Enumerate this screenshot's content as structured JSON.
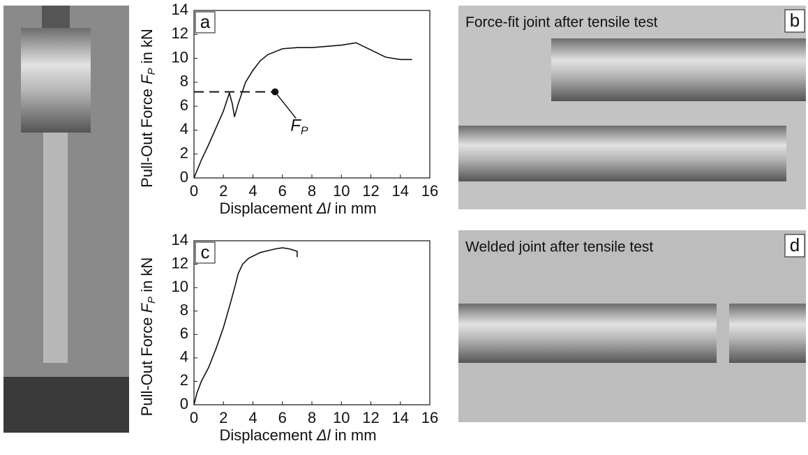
{
  "chart_data": [
    {
      "type": "line",
      "panel": "a",
      "x_label": {
        "text": "Displacement ",
        "symbol": "Δl",
        "unit": " in mm"
      },
      "y_label": {
        "text": "Pull-Out Force ",
        "symbol": "F",
        "subscript": "P",
        "unit": " in kN"
      },
      "x": [
        0,
        0.5,
        1,
        1.5,
        2,
        2.4,
        2.6,
        2.75,
        3,
        3.5,
        4,
        4.5,
        5,
        6,
        7,
        8,
        9,
        10,
        11,
        11.5,
        12,
        13,
        14,
        14.8
      ],
      "series": [
        {
          "color": "#111111",
          "values": [
            0,
            1.5,
            2.8,
            4.2,
            5.6,
            7.1,
            6.2,
            5.1,
            6.2,
            8.0,
            9.0,
            9.8,
            10.3,
            10.8,
            10.9,
            10.9,
            11.0,
            11.1,
            11.3,
            11.0,
            10.7,
            10.1,
            9.9,
            9.9
          ]
        }
      ],
      "marker": {
        "x": 5.5,
        "y": 7.2,
        "symbol": "F",
        "subscript": "P"
      },
      "xlim": [
        0,
        16
      ],
      "xticks": [
        0,
        2,
        4,
        6,
        8,
        10,
        12,
        14,
        16
      ],
      "ylim": [
        0,
        14
      ],
      "yticks": [
        0,
        2,
        4,
        6,
        8,
        10,
        12,
        14
      ]
    },
    {
      "type": "line",
      "panel": "c",
      "x_label": {
        "text": "Displacement ",
        "symbol": "Δl",
        "unit": " in mm"
      },
      "y_label": {
        "text": "Pull-Out Force ",
        "symbol": "F",
        "subscript": "P",
        "unit": " in kN"
      },
      "x": [
        0,
        0.2,
        0.5,
        1,
        1.5,
        2,
        2.5,
        2.8,
        3,
        3.3,
        3.7,
        4.5,
        5.5,
        6,
        6.5,
        7,
        7
      ],
      "series": [
        {
          "color": "#111111",
          "values": [
            0,
            1,
            2,
            3.2,
            4.8,
            6.6,
            8.8,
            10.2,
            11.2,
            12,
            12.5,
            13,
            13.3,
            13.4,
            13.3,
            13.1,
            12.6
          ]
        }
      ],
      "xlim": [
        0,
        16
      ],
      "xticks": [
        0,
        2,
        4,
        6,
        8,
        10,
        12,
        14,
        16
      ],
      "ylim": [
        0,
        14
      ],
      "yticks": [
        0,
        2,
        4,
        6,
        8,
        10,
        12,
        14
      ]
    }
  ],
  "photos": [
    {
      "panel": "b",
      "caption": "Force-fit joint after tensile test"
    },
    {
      "panel": "d",
      "caption": "Welded joint after tensile test"
    }
  ]
}
